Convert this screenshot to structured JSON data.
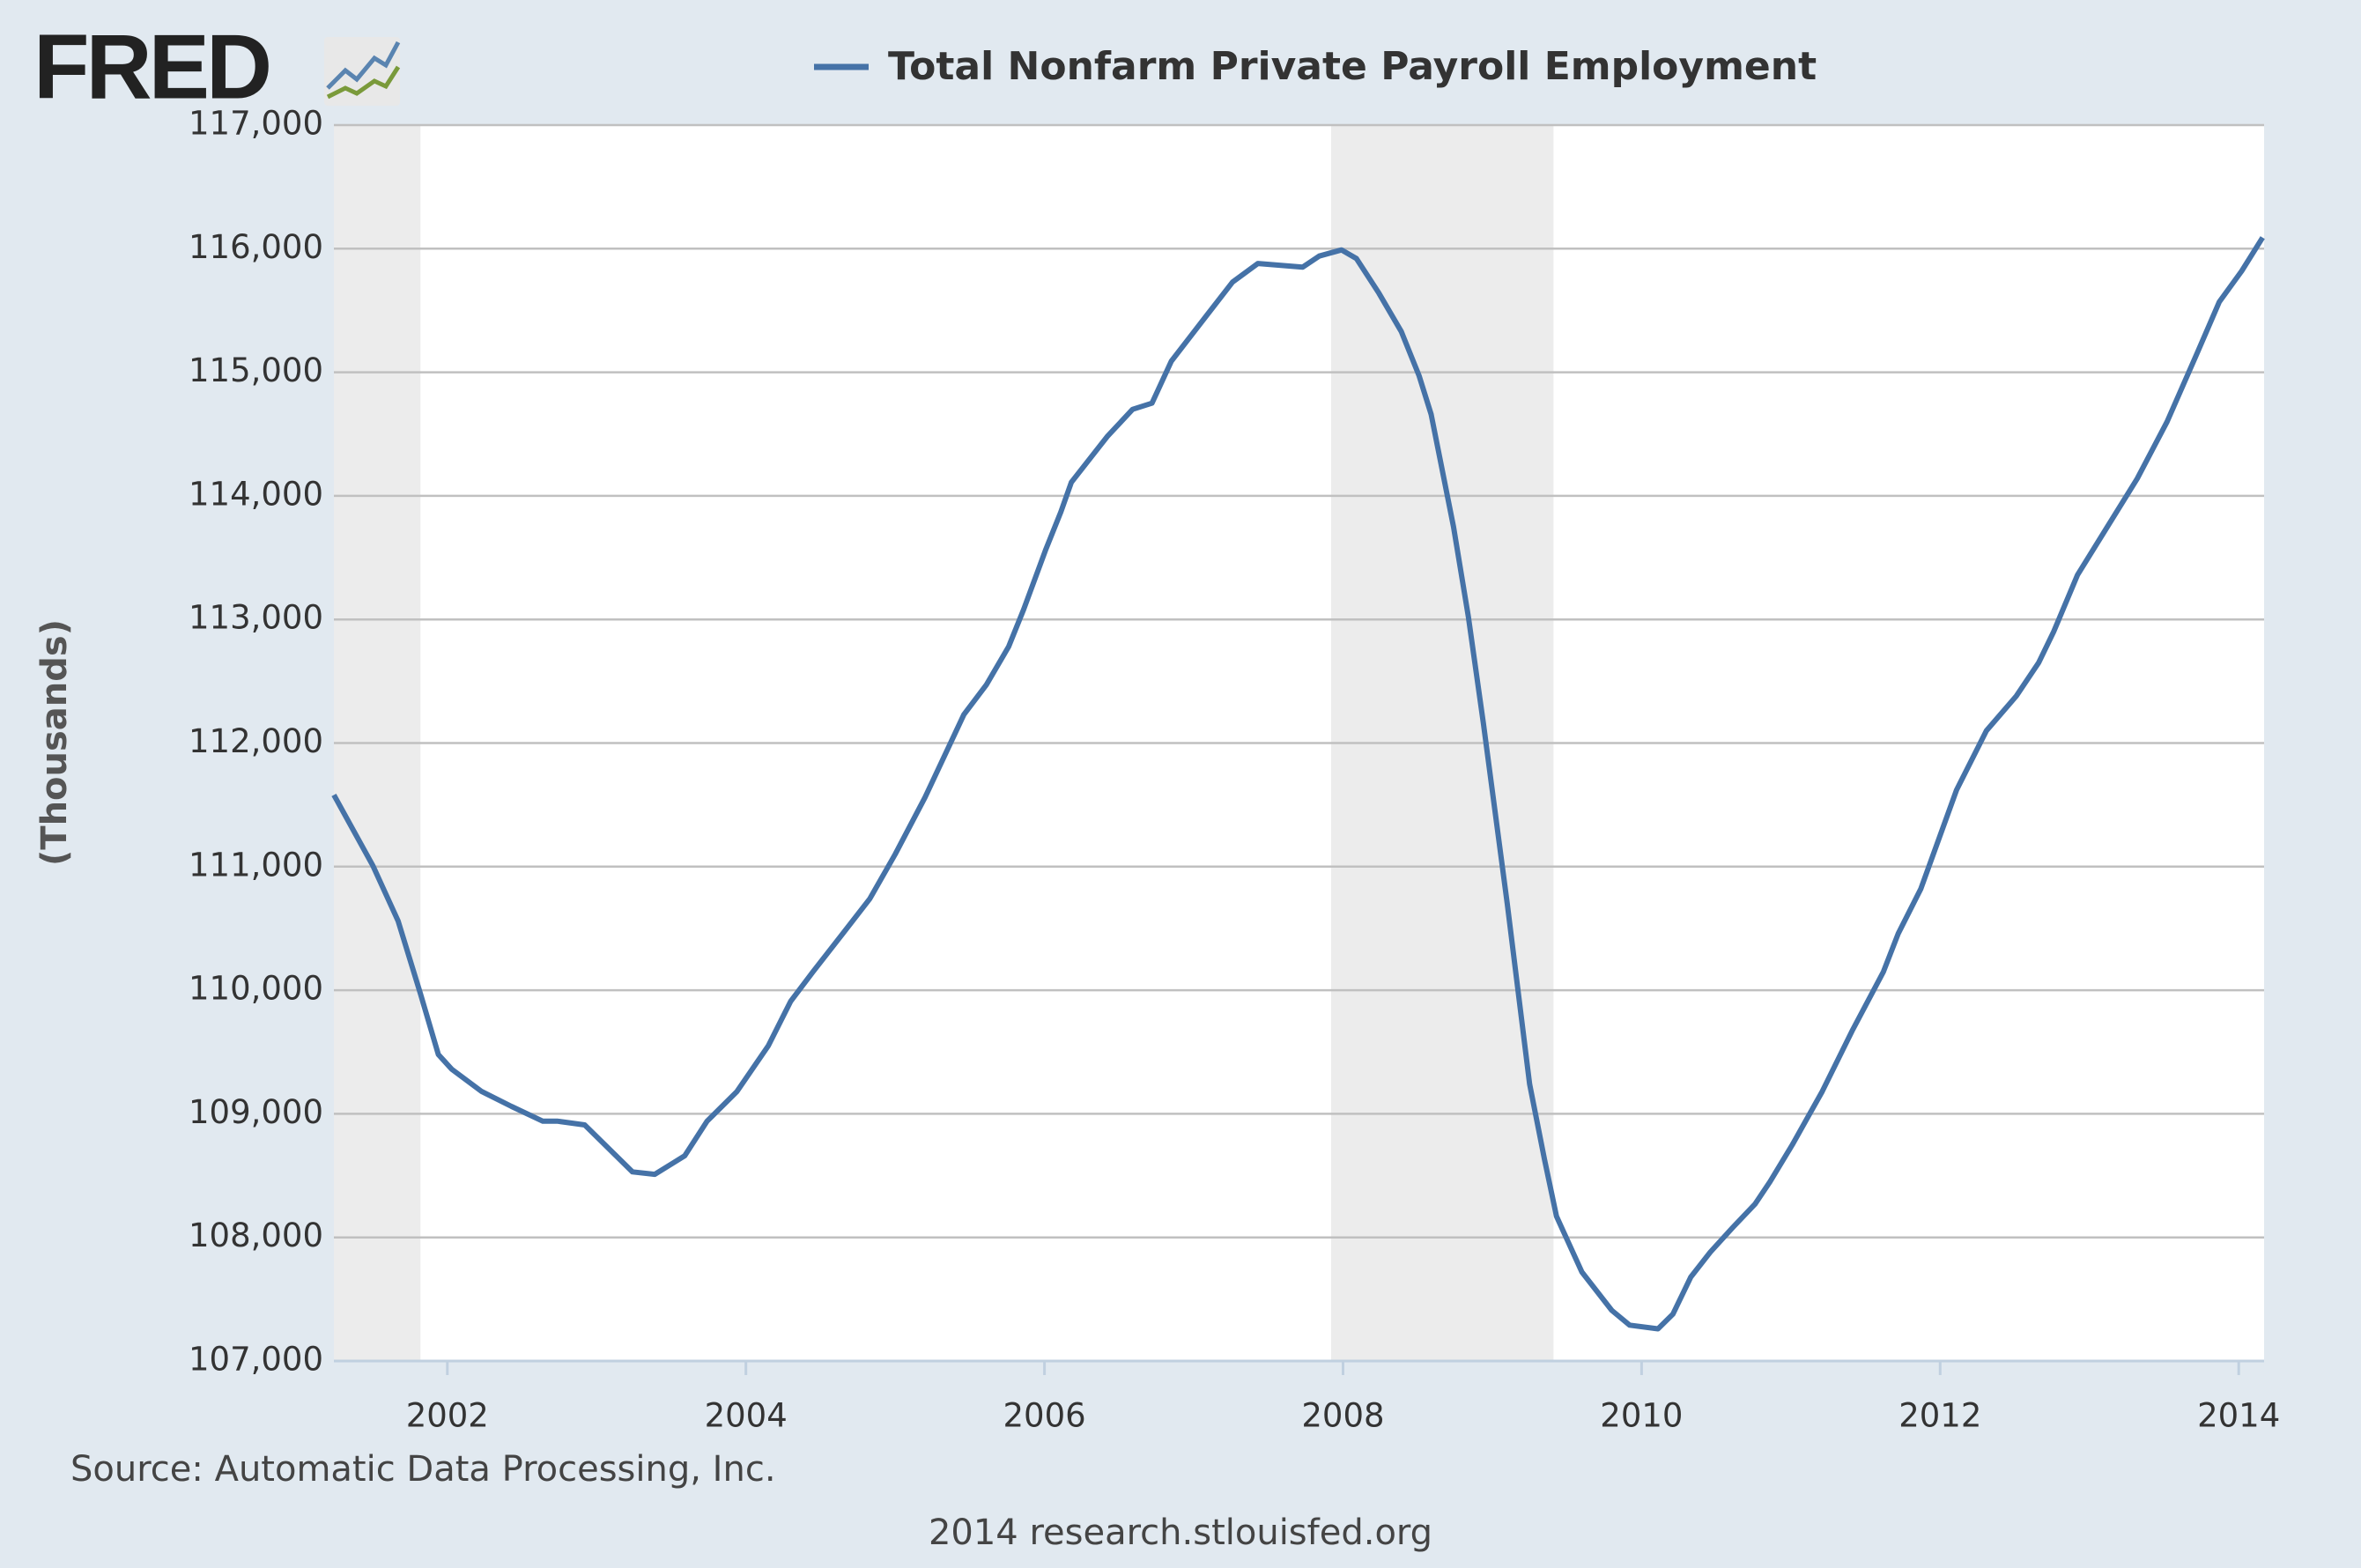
{
  "chart_data": {
    "type": "line",
    "logo": "FRED",
    "ylabel": "(Thousands)",
    "source": "Source: Automatic Data Processing, Inc.",
    "footer": "2014 research.stlouisfed.org",
    "xlim": [
      2001.24,
      2014.17
    ],
    "ylim": [
      107000,
      117000
    ],
    "xticks": [
      2002,
      2004,
      2006,
      2008,
      2010,
      2012,
      2014
    ],
    "yticks": [
      {
        "value": 107000,
        "label": "107,000"
      },
      {
        "value": 108000,
        "label": "108,000"
      },
      {
        "value": 109000,
        "label": "109,000"
      },
      {
        "value": 110000,
        "label": "110,000"
      },
      {
        "value": 111000,
        "label": "111,000"
      },
      {
        "value": 112000,
        "label": "112,000"
      },
      {
        "value": 113000,
        "label": "113,000"
      },
      {
        "value": 114000,
        "label": "114,000"
      },
      {
        "value": 115000,
        "label": "115,000"
      },
      {
        "value": 116000,
        "label": "116,000"
      },
      {
        "value": 117000,
        "label": "117,000"
      }
    ],
    "grid": true,
    "recessions": [
      [
        2001.24,
        2001.82
      ],
      [
        2007.92,
        2009.41
      ]
    ],
    "x": [
      2001.24,
      2001.5,
      2001.67,
      2001.82,
      2001.94,
      2002.03,
      2002.23,
      2002.43,
      2002.64,
      2002.74,
      2002.92,
      2003.24,
      2003.39,
      2003.59,
      2003.74,
      2003.94,
      2004.15,
      2004.3,
      2004.45,
      2004.65,
      2004.83,
      2005.0,
      2005.2,
      2005.46,
      2005.61,
      2005.76,
      2005.86,
      2006.01,
      2006.11,
      2006.18,
      2006.42,
      2006.59,
      2006.72,
      2006.85,
      2007.08,
      2007.26,
      2007.43,
      2007.73,
      2007.84,
      2007.99,
      2008.09,
      2008.24,
      2008.39,
      2008.51,
      2008.59,
      2008.74,
      2008.84,
      2008.94,
      2009.1,
      2009.25,
      2009.35,
      2009.43,
      2009.6,
      2009.8,
      2009.92,
      2010.11,
      2010.21,
      2010.33,
      2010.46,
      2010.61,
      2010.76,
      2010.86,
      2011.01,
      2011.21,
      2011.41,
      2011.62,
      2011.72,
      2011.87,
      2012.11,
      2012.31,
      2012.51,
      2012.66,
      2012.76,
      2012.92,
      2013.12,
      2013.32,
      2013.52,
      2013.72,
      2013.87,
      2014.02,
      2014.16
    ],
    "series": [
      {
        "name": "Total Nonfarm Private Payroll Employment",
        "color": "#4572a7",
        "values": [
          111580,
          111010,
          110560,
          109970,
          109480,
          109360,
          109180,
          109060,
          108940,
          108940,
          108910,
          108530,
          108510,
          108660,
          108940,
          109180,
          109550,
          109910,
          110150,
          110460,
          110740,
          111100,
          111560,
          112230,
          112470,
          112780,
          113080,
          113570,
          113870,
          114110,
          114480,
          114700,
          114750,
          115090,
          115450,
          115730,
          115880,
          115850,
          115940,
          115990,
          115920,
          115640,
          115330,
          114970,
          114660,
          113750,
          113020,
          112160,
          110700,
          109240,
          108630,
          108170,
          107720,
          107410,
          107290,
          107260,
          107380,
          107680,
          107880,
          108080,
          108270,
          108450,
          108750,
          109180,
          109670,
          110150,
          110460,
          110820,
          111620,
          112100,
          112380,
          112650,
          112900,
          113360,
          113750,
          114140,
          114600,
          115150,
          115570,
          115820,
          116090
        ]
      }
    ]
  }
}
